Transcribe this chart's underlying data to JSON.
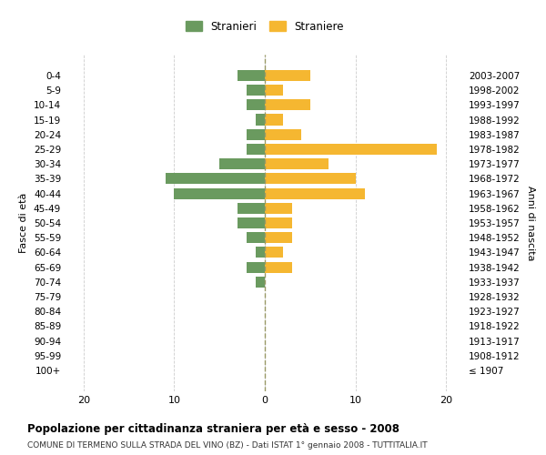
{
  "age_groups": [
    "100+",
    "95-99",
    "90-94",
    "85-89",
    "80-84",
    "75-79",
    "70-74",
    "65-69",
    "60-64",
    "55-59",
    "50-54",
    "45-49",
    "40-44",
    "35-39",
    "30-34",
    "25-29",
    "20-24",
    "15-19",
    "10-14",
    "5-9",
    "0-4"
  ],
  "birth_years": [
    "≤ 1907",
    "1908-1912",
    "1913-1917",
    "1918-1922",
    "1923-1927",
    "1928-1932",
    "1933-1937",
    "1938-1942",
    "1943-1947",
    "1948-1952",
    "1953-1957",
    "1958-1962",
    "1963-1967",
    "1968-1972",
    "1973-1977",
    "1978-1982",
    "1983-1987",
    "1988-1992",
    "1993-1997",
    "1998-2002",
    "2003-2007"
  ],
  "stranieri": [
    0,
    0,
    0,
    0,
    0,
    0,
    1,
    2,
    1,
    2,
    3,
    3,
    10,
    11,
    5,
    2,
    2,
    1,
    2,
    2,
    3
  ],
  "straniere": [
    0,
    0,
    0,
    0,
    0,
    0,
    0,
    3,
    2,
    3,
    3,
    3,
    11,
    10,
    7,
    19,
    4,
    2,
    5,
    2,
    5
  ],
  "stranieri_color": "#6a9a5f",
  "straniere_color": "#f5b731",
  "xlim": 22,
  "title": "Popolazione per cittadinanza straniera per età e sesso - 2008",
  "subtitle": "COMUNE DI TERMENO SULLA STRADA DEL VIN (BZ) - Dati ISTAT 1° gennaio 2008 - TUTTITALIA.IT",
  "subtitle_full": "COMUNE DI TERMENO SULLA STRADA DEL VINO (BZ) - Dati ISTAT 1° gennaio 2008 - TUTTITALIA.IT",
  "ylabel_left": "Fasce di età",
  "ylabel_right": "Anni di nascita",
  "legend_stranieri": "Stranieri",
  "legend_straniere": "Straniere",
  "background_color": "#ffffff",
  "grid_color": "#cccccc"
}
